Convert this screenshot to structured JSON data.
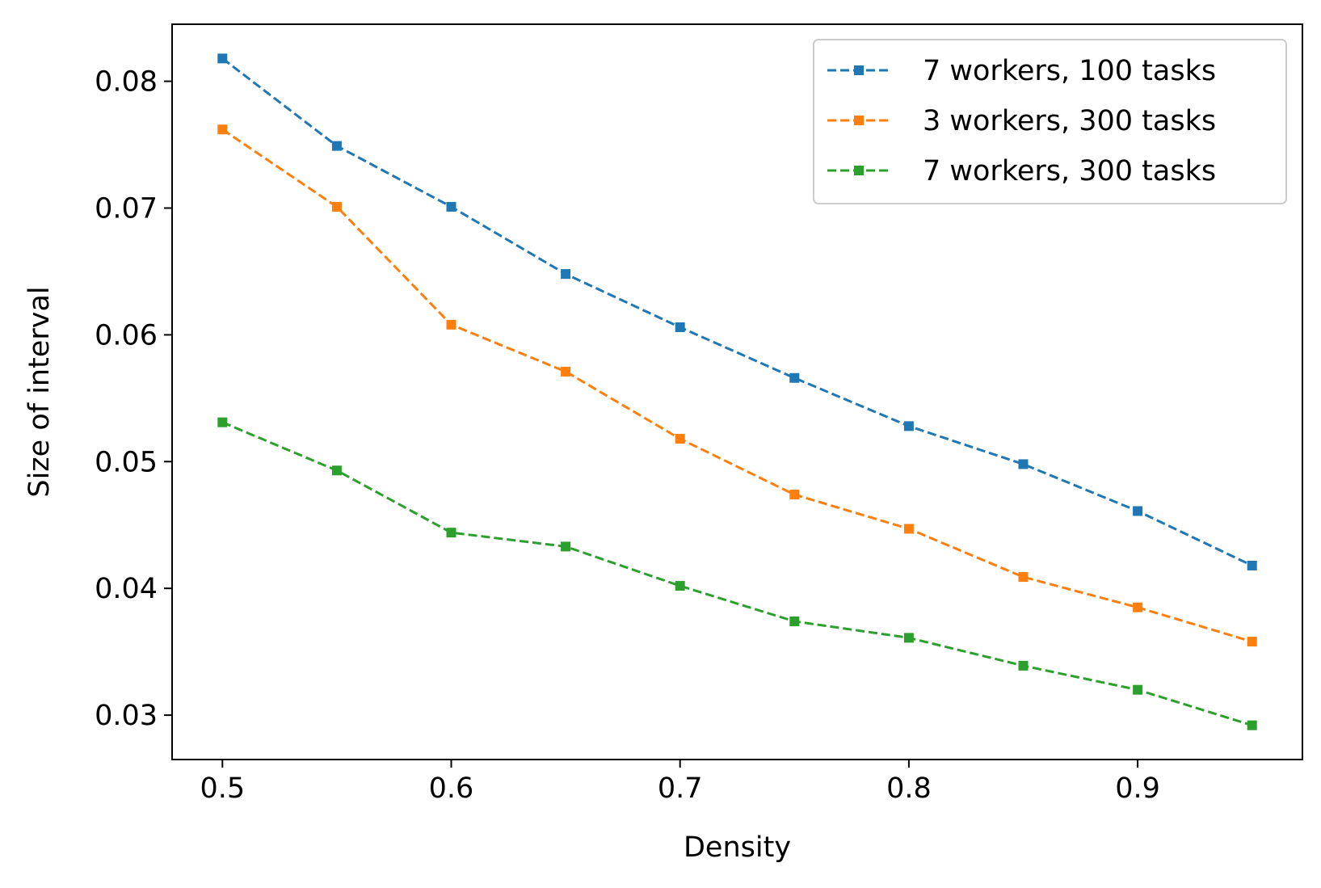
{
  "chart_data": {
    "type": "line",
    "title": "",
    "xlabel": "Density",
    "ylabel": "Size of interval",
    "xlim": [
      0.478,
      0.972
    ],
    "ylim": [
      0.0265,
      0.0845
    ],
    "x": [
      0.5,
      0.55,
      0.6,
      0.65,
      0.7,
      0.75,
      0.8,
      0.85,
      0.9,
      0.95
    ],
    "xticks": [
      0.5,
      0.6,
      0.7,
      0.8,
      0.9
    ],
    "xtick_labels": [
      "0.5",
      "0.6",
      "0.7",
      "0.8",
      "0.9"
    ],
    "yticks": [
      0.03,
      0.04,
      0.05,
      0.06,
      0.07,
      0.08
    ],
    "ytick_labels": [
      "0.03",
      "0.04",
      "0.05",
      "0.06",
      "0.07",
      "0.08"
    ],
    "grid": false,
    "legend_position": "top-right",
    "line_style": "dashed",
    "marker": "square",
    "series": [
      {
        "name": "7 workers, 100 tasks",
        "color": "#1f77b4",
        "values": [
          0.0818,
          0.0749,
          0.0701,
          0.0648,
          0.0606,
          0.0566,
          0.0528,
          0.0498,
          0.0461,
          0.0418
        ]
      },
      {
        "name": "3 workers, 300 tasks",
        "color": "#ff7f0e",
        "values": [
          0.0762,
          0.0701,
          0.0608,
          0.0571,
          0.0518,
          0.0474,
          0.0447,
          0.0409,
          0.0385,
          0.0358
        ]
      },
      {
        "name": "7 workers, 300 tasks",
        "color": "#2ca02c",
        "values": [
          0.0531,
          0.0493,
          0.0444,
          0.0433,
          0.0402,
          0.0374,
          0.0361,
          0.0339,
          0.032,
          0.0292
        ]
      }
    ]
  }
}
